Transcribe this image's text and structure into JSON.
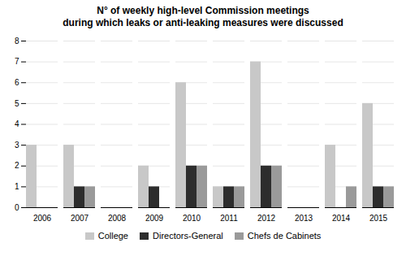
{
  "chart_data": {
    "type": "bar",
    "title": "N° of weekly high-level Commission meetings\nduring which leaks or anti-leaking measures were discussed",
    "categories": [
      2006,
      2007,
      2008,
      2009,
      2010,
      2011,
      2012,
      2013,
      2014,
      2015
    ],
    "series": [
      {
        "name": "College",
        "color": "#c8c8c8",
        "values": [
          3,
          3,
          0,
          2,
          6,
          1,
          7,
          0,
          3,
          5
        ]
      },
      {
        "name": "Directors-General",
        "color": "#2d2d2d",
        "values": [
          0,
          1,
          0,
          1,
          2,
          1,
          2,
          0,
          0,
          1
        ]
      },
      {
        "name": "Chefs de Cabinets",
        "color": "#9a9a9a",
        "values": [
          0,
          1,
          0,
          0,
          2,
          1,
          2,
          0,
          1,
          1
        ]
      }
    ],
    "ylim": [
      0,
      8
    ],
    "yticks": [
      0,
      1,
      2,
      3,
      4,
      5,
      6,
      7,
      8
    ],
    "grid": true,
    "legend": "bottom"
  }
}
